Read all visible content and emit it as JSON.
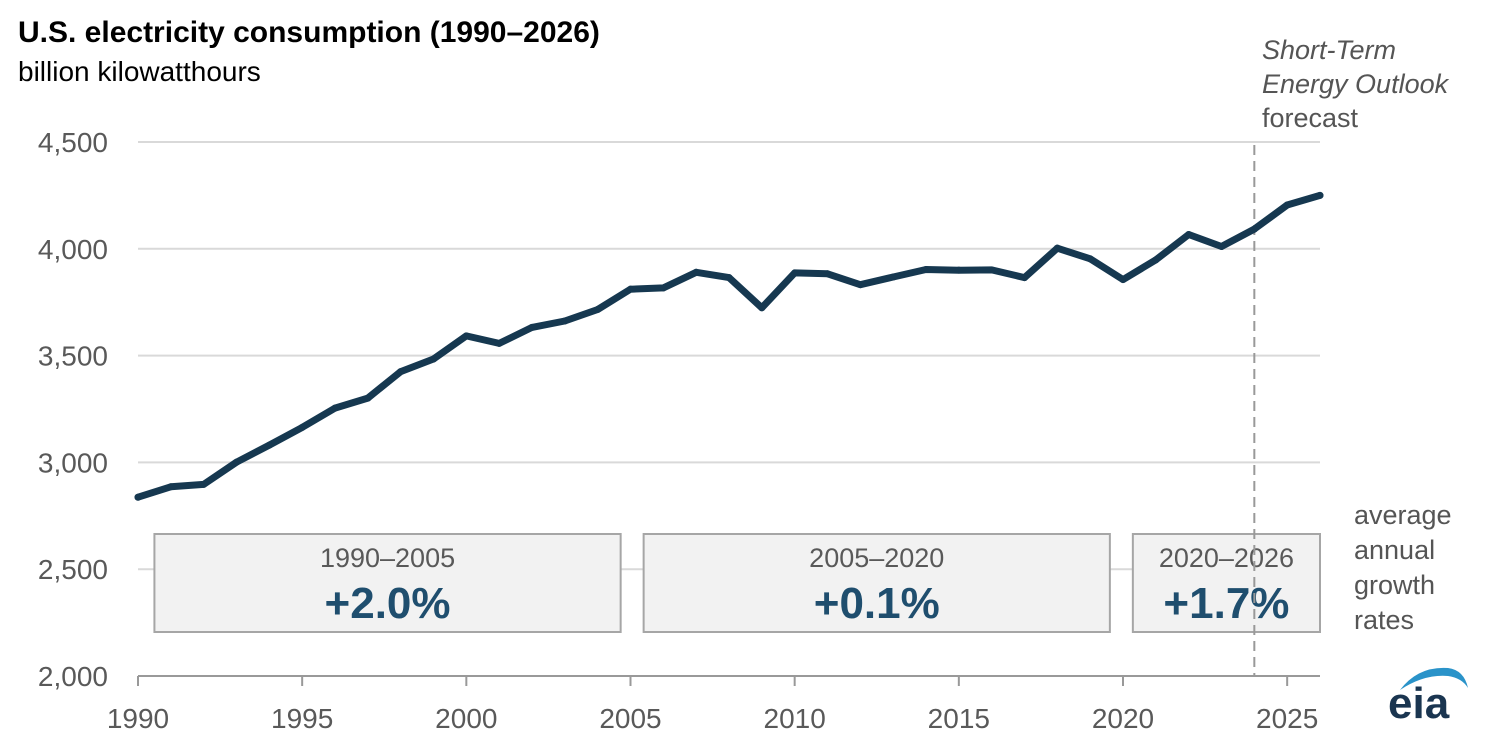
{
  "title": "U.S. electricity consumption (1990–2026)",
  "subtitle": "billion kilowatthours",
  "forecast_label": {
    "line1": "Short-Term",
    "line2": "Energy Outlook",
    "line3": "forecast"
  },
  "growth_note": [
    "average",
    "annual",
    "growth",
    "rates"
  ],
  "logo_text": "eia",
  "colors": {
    "line": "#163850",
    "grid": "#d9d9d9",
    "box_fill": "#f2f2f2",
    "box_stroke": "#a6a6a6",
    "axis_text": "#595959",
    "growth_text": "#1f4e6e"
  },
  "chart_data": {
    "type": "line",
    "ylim": [
      2000,
      4500
    ],
    "xlim": [
      1990,
      2026
    ],
    "yticks": [
      2000,
      2500,
      3000,
      3500,
      4000,
      4500
    ],
    "ytick_labels": [
      "2,000",
      "2,500",
      "3,000",
      "3,500",
      "4,000",
      "4,500"
    ],
    "xticks": [
      1990,
      1995,
      2000,
      2005,
      2010,
      2015,
      2020,
      2025
    ],
    "xtick_labels": [
      "1990",
      "1995",
      "2000",
      "2005",
      "2010",
      "2015",
      "2020",
      "2025"
    ],
    "grid": true,
    "forecast_start": 2024,
    "series": [
      {
        "x": [
          1990,
          1991,
          1992,
          1993,
          1994,
          1995,
          1996,
          1997,
          1998,
          1999,
          2000,
          2001,
          2002,
          2003,
          2004,
          2005,
          2006,
          2007,
          2008,
          2009,
          2010,
          2011,
          2012,
          2013,
          2014,
          2015,
          2016,
          2017,
          2018,
          2019,
          2020,
          2021,
          2022,
          2023,
          2024,
          2025,
          2026
        ],
        "values": [
          2837,
          2886,
          2897,
          3001,
          3081,
          3164,
          3254,
          3301,
          3425,
          3484,
          3592,
          3557,
          3632,
          3662,
          3716,
          3811,
          3817,
          3890,
          3865,
          3724,
          3887,
          3883,
          3832,
          3868,
          3903,
          3900,
          3901,
          3865,
          4003,
          3953,
          3856,
          3948,
          4067,
          4011,
          4092,
          4205,
          4250
        ]
      }
    ],
    "growth_rates": [
      {
        "period": "1990–2005",
        "rate": "+2.0%",
        "from": 1990.5,
        "to": 2004.7
      },
      {
        "period": "2005–2020",
        "rate": "+0.1%",
        "from": 2005.4,
        "to": 2019.6
      },
      {
        "period": "2020–2026",
        "rate": "+1.7%",
        "from": 2020.3,
        "to": 2026.0
      }
    ]
  }
}
